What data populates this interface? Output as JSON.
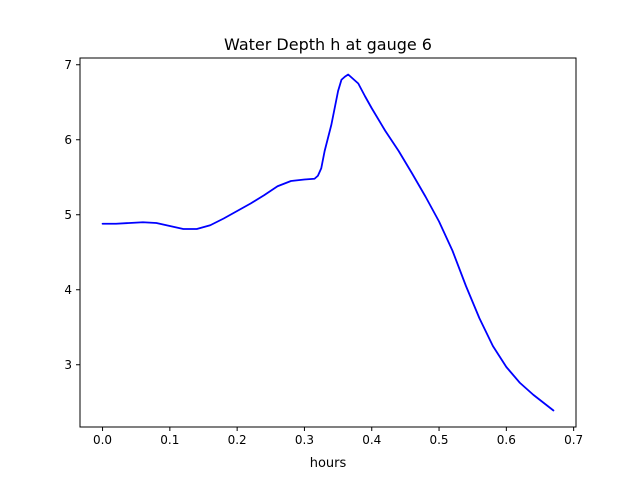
{
  "chart_data": {
    "type": "line",
    "title": "Water Depth h at gauge 6",
    "xlabel": "hours",
    "ylabel": "",
    "xlim": [
      -0.0335,
      0.7035
    ],
    "ylim": [
      2.17,
      7.09
    ],
    "xticks": [
      0.0,
      0.1,
      0.2,
      0.3,
      0.4,
      0.5,
      0.6,
      0.7
    ],
    "xtick_labels": [
      "0.0",
      "0.1",
      "0.2",
      "0.3",
      "0.4",
      "0.5",
      "0.6",
      "0.7"
    ],
    "yticks": [
      3,
      4,
      5,
      6,
      7
    ],
    "ytick_labels": [
      "3",
      "4",
      "5",
      "6",
      "7"
    ],
    "grid": false,
    "legend": "none",
    "series": [
      {
        "color": "#0000ff",
        "x": [
          0.0,
          0.02,
          0.04,
          0.06,
          0.08,
          0.1,
          0.12,
          0.14,
          0.16,
          0.18,
          0.2,
          0.22,
          0.24,
          0.26,
          0.28,
          0.3,
          0.315,
          0.32,
          0.325,
          0.33,
          0.34,
          0.35,
          0.355,
          0.36,
          0.365,
          0.37,
          0.38,
          0.39,
          0.4,
          0.42,
          0.44,
          0.46,
          0.48,
          0.5,
          0.52,
          0.54,
          0.56,
          0.58,
          0.6,
          0.62,
          0.64,
          0.67
        ],
        "y": [
          4.88,
          4.88,
          4.89,
          4.9,
          4.89,
          4.85,
          4.81,
          4.81,
          4.86,
          4.95,
          5.05,
          5.15,
          5.26,
          5.38,
          5.45,
          5.47,
          5.48,
          5.52,
          5.62,
          5.85,
          6.2,
          6.65,
          6.8,
          6.84,
          6.87,
          6.83,
          6.75,
          6.58,
          6.42,
          6.12,
          5.85,
          5.55,
          5.24,
          4.91,
          4.52,
          4.05,
          3.62,
          3.25,
          2.97,
          2.76,
          2.6,
          2.39
        ]
      }
    ]
  }
}
